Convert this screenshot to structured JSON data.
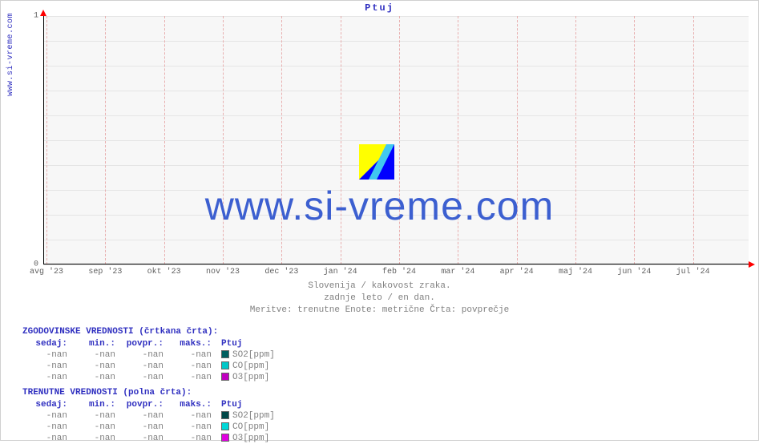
{
  "source_url": "www.si-vreme.com",
  "chart": {
    "title": "Ptuj",
    "watermark": "www.si-vreme.com",
    "type": "line",
    "background_color": "#f7f7f7",
    "grid_color": "#e5e5e5",
    "month_grid_color": "#e8b0b0",
    "axis_color": "#000000",
    "arrow_color": "#ff0000",
    "title_color": "#3030c0",
    "xlim": [
      "avg '23",
      "jul '24"
    ],
    "ylim": [
      0,
      1
    ],
    "x_ticks": [
      "avg '23",
      "sep '23",
      "okt '23",
      "nov '23",
      "dec '23",
      "jan '24",
      "feb '24",
      "mar '24",
      "apr '24",
      "maj '24",
      "jun '24",
      "jul '24"
    ],
    "y_ticks": [
      0,
      1
    ],
    "subtitle_lines": [
      "Slovenija / kakovost zraka.",
      "zadnje leto / en dan.",
      "Meritve: trenutne  Enote: metrične  Črta: povprečje"
    ]
  },
  "legend_historical": {
    "title": "ZGODOVINSKE VREDNOSTI (črtkana črta):",
    "columns": [
      "sedaj:",
      "min.:",
      "povpr.:",
      "maks.:",
      "Ptuj"
    ],
    "rows": [
      {
        "sedaj": "-nan",
        "min": "-nan",
        "povpr": "-nan",
        "maks": "-nan",
        "series": "SO2[ppm]",
        "color": "#006060"
      },
      {
        "sedaj": "-nan",
        "min": "-nan",
        "povpr": "-nan",
        "maks": "-nan",
        "series": "CO[ppm]",
        "color": "#00c8c8"
      },
      {
        "sedaj": "-nan",
        "min": "-nan",
        "povpr": "-nan",
        "maks": "-nan",
        "series": "O3[ppm]",
        "color": "#c000c0"
      }
    ]
  },
  "legend_current": {
    "title": "TRENUTNE VREDNOSTI (polna črta):",
    "columns": [
      "sedaj:",
      "min.:",
      "povpr.:",
      "maks.:",
      "Ptuj"
    ],
    "rows": [
      {
        "sedaj": "-nan",
        "min": "-nan",
        "povpr": "-nan",
        "maks": "-nan",
        "series": "SO2[ppm]",
        "color": "#004848"
      },
      {
        "sedaj": "-nan",
        "min": "-nan",
        "povpr": "-nan",
        "maks": "-nan",
        "series": "CO[ppm]",
        "color": "#00d8d8"
      },
      {
        "sedaj": "-nan",
        "min": "-nan",
        "povpr": "-nan",
        "maks": "-nan",
        "series": "O3[ppm]",
        "color": "#e000e0"
      }
    ]
  }
}
